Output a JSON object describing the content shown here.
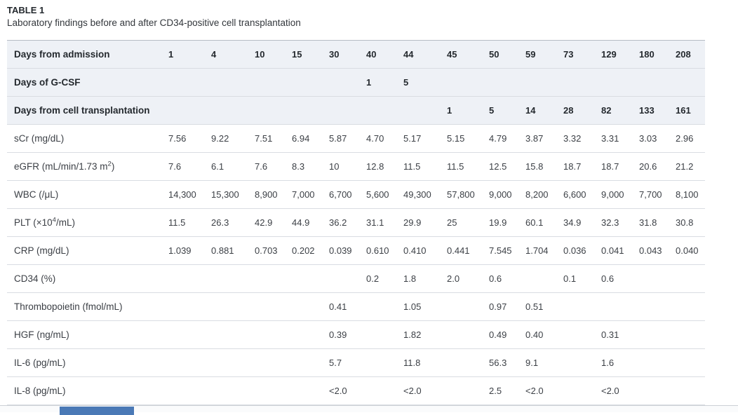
{
  "title": "TABLE 1",
  "subtitle": "Laboratory findings before and after CD34-positive cell transplantation",
  "colors": {
    "header_row_bg": "#eef1f6",
    "row_border": "#d9dce2",
    "table_top_border": "#b6bcc4",
    "text": "#33373c",
    "bottom_accent_bar": "#4a79b6"
  },
  "table": {
    "rows": [
      {
        "label": "Days from admission",
        "header": true,
        "values": [
          "1",
          "4",
          "10",
          "15",
          "30",
          "40",
          "44",
          "45",
          "50",
          "59",
          "73",
          "129",
          "180",
          "208"
        ]
      },
      {
        "label": "Days of G-CSF",
        "header": true,
        "values": [
          "",
          "",
          "",
          "",
          "",
          "1",
          "5",
          "",
          "",
          "",
          "",
          "",
          "",
          ""
        ]
      },
      {
        "label": "Days from cell transplantation",
        "header": true,
        "values": [
          "",
          "",
          "",
          "",
          "",
          "",
          "",
          "1",
          "5",
          "14",
          "28",
          "82",
          "133",
          "161"
        ]
      },
      {
        "label": "sCr (mg/dL)",
        "values": [
          "7.56",
          "9.22",
          "7.51",
          "6.94",
          "5.87",
          "4.70",
          "5.17",
          "5.15",
          "4.79",
          "3.87",
          "3.32",
          "3.31",
          "3.03",
          "2.96"
        ]
      },
      {
        "label": "eGFR (mL/min/1.73 m",
        "label_sup": "2",
        "label_end": ")",
        "values": [
          "7.6",
          "6.1",
          "7.6",
          "8.3",
          "10",
          "12.8",
          "11.5",
          "11.5",
          "12.5",
          "15.8",
          "18.7",
          "18.7",
          "20.6",
          "21.2"
        ]
      },
      {
        "label": "WBC (/μL)",
        "values": [
          "14,300",
          "15,300",
          "8,900",
          "7,000",
          "6,700",
          "5,600",
          "49,300",
          "57,800",
          "9,000",
          "8,200",
          "6,600",
          "9,000",
          "7,700",
          "8,100"
        ]
      },
      {
        "label": "PLT (×10",
        "label_sup": "4",
        "label_end": "/mL)",
        "values": [
          "11.5",
          "26.3",
          "42.9",
          "44.9",
          "36.2",
          "31.1",
          "29.9",
          "25",
          "19.9",
          "60.1",
          "34.9",
          "32.3",
          "31.8",
          "30.8"
        ]
      },
      {
        "label": "CRP (mg/dL)",
        "values": [
          "1.039",
          "0.881",
          "0.703",
          "0.202",
          "0.039",
          "0.610",
          "0.410",
          "0.441",
          "7.545",
          "1.704",
          "0.036",
          "0.041",
          "0.043",
          "0.040"
        ]
      },
      {
        "label": "CD34 (%)",
        "values": [
          "",
          "",
          "",
          "",
          "",
          "0.2",
          "1.8",
          "2.0",
          "0.6",
          "",
          "0.1",
          "0.6",
          "",
          ""
        ]
      },
      {
        "label": "Thrombopoietin (fmol/mL)",
        "values": [
          "",
          "",
          "",
          "",
          "0.41",
          "",
          "1.05",
          "",
          "0.97",
          "0.51",
          "",
          "",
          "",
          ""
        ]
      },
      {
        "label": "HGF (ng/mL)",
        "values": [
          "",
          "",
          "",
          "",
          "0.39",
          "",
          "1.82",
          "",
          "0.49",
          "0.40",
          "",
          "0.31",
          "",
          ""
        ]
      },
      {
        "label": "IL-6 (pg/mL)",
        "values": [
          "",
          "",
          "",
          "",
          "5.7",
          "",
          "11.8",
          "",
          "56.3",
          "9.1",
          "",
          "1.6",
          "",
          ""
        ]
      },
      {
        "label": "IL-8 (pg/mL)",
        "values": [
          "",
          "",
          "",
          "",
          "<2.0",
          "",
          "<2.0",
          "",
          "2.5",
          "<2.0",
          "",
          "<2.0",
          "",
          ""
        ]
      }
    ]
  }
}
